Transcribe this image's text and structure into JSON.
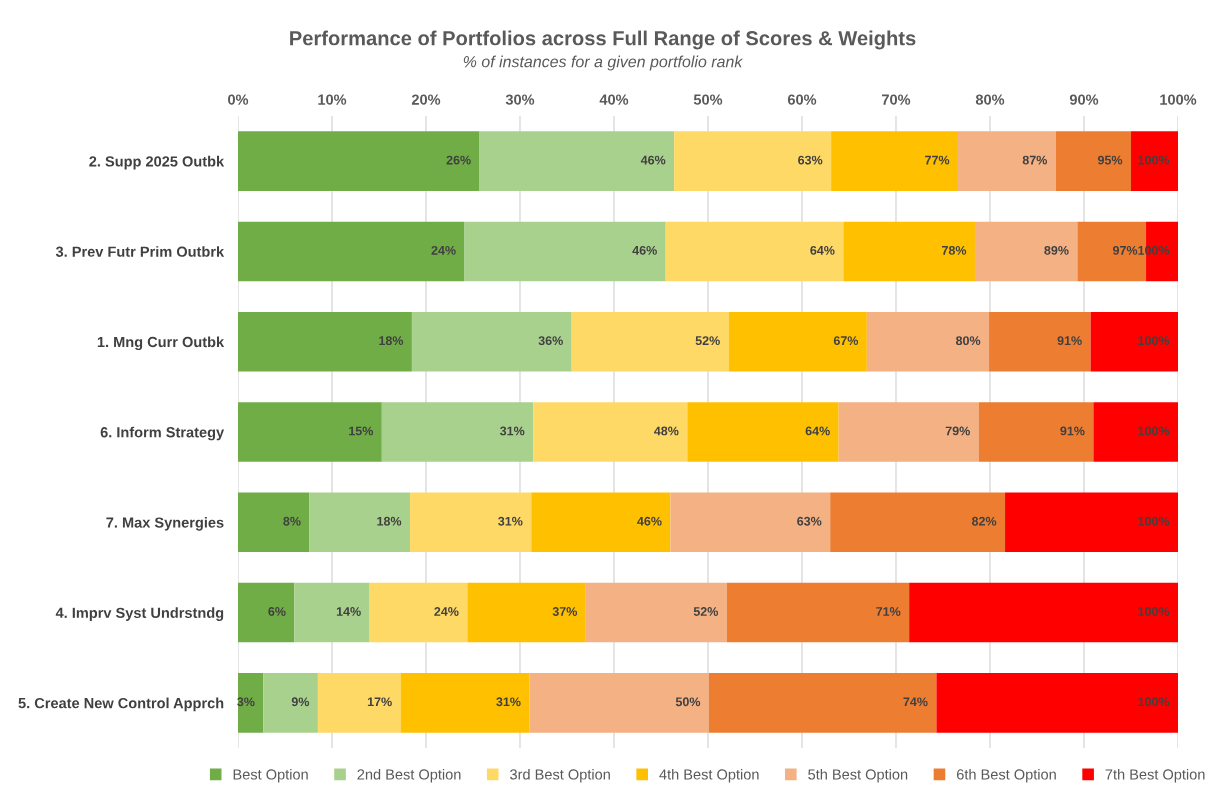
{
  "chart_data": {
    "type": "bar",
    "orientation": "horizontal",
    "stacked": true,
    "title": "Performance of Portfolios across Full Range of Scores & Weights",
    "subtitle": "% of instances for a given portfolio rank",
    "categories": [
      "2. Supp 2025 Outbk",
      "3. Prev Futr Prim Outbrk",
      "1. Mng Curr Outbk",
      "6. Inform Strategy",
      "7. Max Synergies",
      "4. Imprv Syst Undrstndg",
      "5. Create New Control Apprch"
    ],
    "series": [
      {
        "name": "Best Option",
        "color": "#70ad47",
        "values": [
          25.7,
          24.1,
          18.5,
          15.3,
          7.6,
          6.0,
          2.7
        ]
      },
      {
        "name": "2nd Best Option",
        "color": "#a9d18e",
        "values": [
          20.7,
          21.4,
          17.0,
          16.1,
          10.7,
          8.0,
          5.8
        ]
      },
      {
        "name": "3rd Best Option",
        "color": "#ffd966",
        "values": [
          16.7,
          18.9,
          16.7,
          16.4,
          12.9,
          10.4,
          8.8
        ]
      },
      {
        "name": "4th Best Option",
        "color": "#ffc000",
        "values": [
          13.5,
          14.0,
          14.7,
          16.1,
          14.8,
          12.6,
          13.7
        ]
      },
      {
        "name": "5th Best Option",
        "color": "#f4b183",
        "values": [
          10.4,
          10.9,
          13.0,
          14.9,
          17.0,
          15.0,
          19.1
        ]
      },
      {
        "name": "6th Best Option",
        "color": "#ed7d31",
        "values": [
          8.0,
          7.3,
          10.8,
          12.2,
          18.6,
          19.4,
          24.2
        ]
      },
      {
        "name": "7th Best Option",
        "color": "#ff0000",
        "values": [
          5.0,
          3.4,
          9.3,
          9.0,
          18.4,
          28.6,
          25.7
        ]
      }
    ],
    "annotations": [
      {
        "text": "26%",
        "x": 25.7,
        "y": "2. Supp 2025 Outbk"
      },
      {
        "text": "46%",
        "x": 46.4,
        "y": "2. Supp 2025 Outbk"
      },
      {
        "text": "63%",
        "x": 63.1,
        "y": "2. Supp 2025 Outbk"
      },
      {
        "text": "77%",
        "x": 76.6,
        "y": "2. Supp 2025 Outbk"
      },
      {
        "text": "87%",
        "x": 87.0,
        "y": "2. Supp 2025 Outbk"
      },
      {
        "text": "95%",
        "x": 95.0,
        "y": "2. Supp 2025 Outbk"
      },
      {
        "text": "100%",
        "x": 100,
        "y": "2. Supp 2025 Outbk"
      },
      {
        "text": "24%",
        "x": 24.1,
        "y": "3. Prev Futr Prim Outbrk"
      },
      {
        "text": "46%",
        "x": 45.5,
        "y": "3. Prev Futr Prim Outbrk"
      },
      {
        "text": "64%",
        "x": 64.4,
        "y": "3. Prev Futr Prim Outbrk"
      },
      {
        "text": "78%",
        "x": 78.4,
        "y": "3. Prev Futr Prim Outbrk"
      },
      {
        "text": "89%",
        "x": 89.3,
        "y": "3. Prev Futr Prim Outbrk"
      },
      {
        "text": "97%",
        "x": 96.6,
        "y": "3. Prev Futr Prim Outbrk"
      },
      {
        "text": "100%",
        "x": 100,
        "y": "3. Prev Futr Prim Outbrk"
      },
      {
        "text": "18%",
        "x": 18.5,
        "y": "1. Mng Curr Outbk"
      },
      {
        "text": "36%",
        "x": 35.5,
        "y": "1. Mng Curr Outbk"
      },
      {
        "text": "52%",
        "x": 52.2,
        "y": "1. Mng Curr Outbk"
      },
      {
        "text": "67%",
        "x": 66.9,
        "y": "1. Mng Curr Outbk"
      },
      {
        "text": "80%",
        "x": 79.9,
        "y": "1. Mng Curr Outbk"
      },
      {
        "text": "91%",
        "x": 90.7,
        "y": "1. Mng Curr Outbk"
      },
      {
        "text": "100%",
        "x": 100,
        "y": "1. Mng Curr Outbk"
      },
      {
        "text": "15%",
        "x": 15.3,
        "y": "6. Inform Strategy"
      },
      {
        "text": "31%",
        "x": 31.4,
        "y": "6. Inform Strategy"
      },
      {
        "text": "48%",
        "x": 47.8,
        "y": "6. Inform Strategy"
      },
      {
        "text": "64%",
        "x": 63.9,
        "y": "6. Inform Strategy"
      },
      {
        "text": "79%",
        "x": 78.8,
        "y": "6. Inform Strategy"
      },
      {
        "text": "91%",
        "x": 91.0,
        "y": "6. Inform Strategy"
      },
      {
        "text": "100%",
        "x": 100,
        "y": "6. Inform Strategy"
      },
      {
        "text": "8%",
        "x": 7.6,
        "y": "7. Max Synergies"
      },
      {
        "text": "18%",
        "x": 18.3,
        "y": "7. Max Synergies"
      },
      {
        "text": "31%",
        "x": 31.2,
        "y": "7. Max Synergies"
      },
      {
        "text": "46%",
        "x": 46.0,
        "y": "7. Max Synergies"
      },
      {
        "text": "63%",
        "x": 63.0,
        "y": "7. Max Synergies"
      },
      {
        "text": "82%",
        "x": 81.6,
        "y": "7. Max Synergies"
      },
      {
        "text": "100%",
        "x": 100,
        "y": "7. Max Synergies"
      },
      {
        "text": "6%",
        "x": 6.0,
        "y": "4. Imprv Syst Undrstndg"
      },
      {
        "text": "14%",
        "x": 14.0,
        "y": "4. Imprv Syst Undrstndg"
      },
      {
        "text": "24%",
        "x": 24.4,
        "y": "4. Imprv Syst Undrstndg"
      },
      {
        "text": "37%",
        "x": 37.0,
        "y": "4. Imprv Syst Undrstndg"
      },
      {
        "text": "52%",
        "x": 52.0,
        "y": "4. Imprv Syst Undrstndg"
      },
      {
        "text": "71%",
        "x": 71.4,
        "y": "4. Imprv Syst Undrstndg"
      },
      {
        "text": "100%",
        "x": 100,
        "y": "4. Imprv Syst Undrstndg"
      },
      {
        "text": "3%",
        "x": 2.7,
        "y": "5. Create New Control Apprch"
      },
      {
        "text": "9%",
        "x": 8.5,
        "y": "5. Create New Control Apprch"
      },
      {
        "text": "17%",
        "x": 17.3,
        "y": "5. Create New Control Apprch"
      },
      {
        "text": "31%",
        "x": 31.0,
        "y": "5. Create New Control Apprch"
      },
      {
        "text": "50%",
        "x": 50.1,
        "y": "5. Create New Control Apprch"
      },
      {
        "text": "74%",
        "x": 74.3,
        "y": "5. Create New Control Apprch"
      },
      {
        "text": "100%",
        "x": 100,
        "y": "5. Create New Control Apprch"
      }
    ],
    "xlim": [
      0,
      100
    ],
    "xticks": [
      {
        "value": 0,
        "label": "0%"
      },
      {
        "value": 10,
        "label": "10%"
      },
      {
        "value": 20,
        "label": "20%"
      },
      {
        "value": 30,
        "label": "30%"
      },
      {
        "value": 40,
        "label": "40%"
      },
      {
        "value": 50,
        "label": "50%"
      },
      {
        "value": 60,
        "label": "60%"
      },
      {
        "value": 70,
        "label": "70%"
      },
      {
        "value": 80,
        "label": "80%"
      },
      {
        "value": 90,
        "label": "90%"
      },
      {
        "value": 100,
        "label": "100%"
      }
    ],
    "grid": "x",
    "legend": "bottom"
  }
}
